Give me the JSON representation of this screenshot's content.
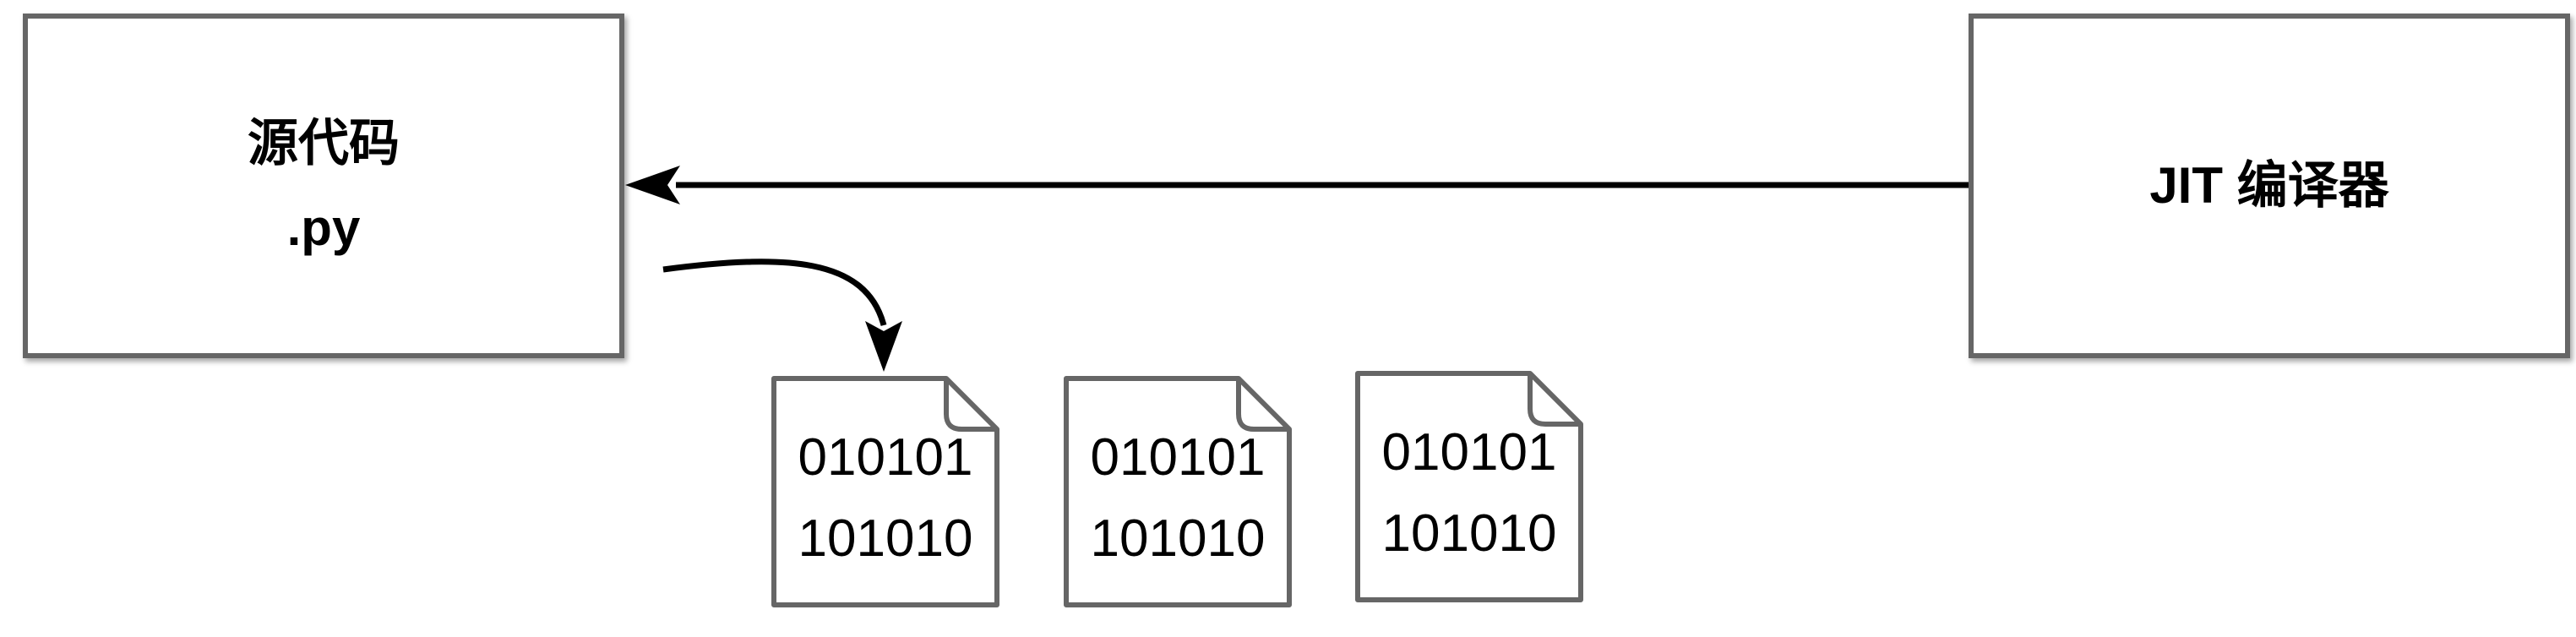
{
  "source_box": {
    "line1": "源代码",
    "line2": ".py"
  },
  "jit_box": {
    "label": "JIT 编译器"
  },
  "files": [
    {
      "line1": "010101",
      "line2": "101010"
    },
    {
      "line1": "010101",
      "line2": "101010"
    },
    {
      "line1": "010101",
      "line2": "101010"
    }
  ],
  "colors": {
    "border": "#666666",
    "arrow": "#000000",
    "text": "#000000",
    "background": "#ffffff"
  }
}
